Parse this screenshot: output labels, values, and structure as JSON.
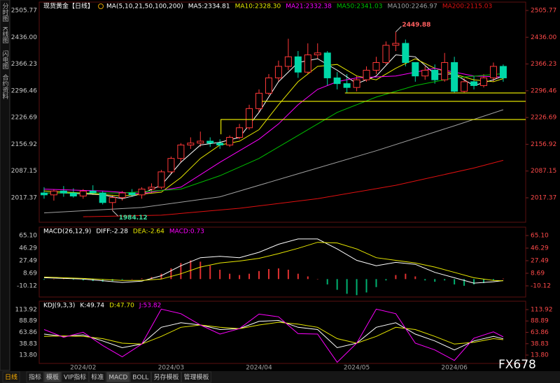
{
  "sidebar": [
    "分时图",
    "K线图",
    "闪电图",
    "合约资料"
  ],
  "toolbar": [
    "日线",
    "指标",
    "模板",
    "VIP指标",
    "标准",
    "MACD",
    "BOLL",
    "另存模板",
    "管理模板"
  ],
  "logo": "FX678",
  "chart_data": [
    {
      "type": "candlestick",
      "title": "现货黄金【日线】",
      "params": "MA(5,10,21,50,100,200)",
      "up_color": "#ff3838",
      "down_color": "#00d8a8",
      "categories": [
        null,
        null,
        null,
        null,
        "2024/02",
        null,
        null,
        null,
        null,
        null,
        null,
        null,
        null,
        "2024/03",
        null,
        null,
        null,
        null,
        null,
        null,
        null,
        null,
        "2024/04",
        null,
        null,
        null,
        null,
        null,
        null,
        null,
        null,
        null,
        "2024/05",
        null,
        null,
        null,
        null,
        null,
        null,
        null,
        null,
        null,
        "2024/06",
        null,
        null,
        null,
        null,
        null
      ],
      "xlim": [
        -0.5,
        49.3
      ],
      "ylim": [
        1953.6,
        2527.6
      ],
      "yticks": [
        2505.77,
        {
          "value": 2436,
          "label": "2436.00"
        },
        2366.23,
        2296.46,
        2226.69,
        2156.92,
        2087.15,
        2017.37
      ],
      "ohlc": [
        [
          2030,
          2045,
          2015,
          2025
        ],
        [
          2025,
          2040,
          2010,
          2035
        ],
        [
          2035,
          2048,
          2020,
          2030
        ],
        [
          2030,
          2042,
          2018,
          2022
        ],
        [
          2022,
          2040,
          2015,
          2035
        ],
        [
          2035,
          2050,
          2025,
          2030
        ],
        [
          2030,
          2035,
          2000,
          2005
        ],
        [
          2005,
          2025,
          1984.12,
          2018
        ],
        [
          2018,
          2035,
          2010,
          2030
        ],
        [
          2030,
          2040,
          2020,
          2025
        ],
        [
          2025,
          2045,
          2015,
          2040
        ],
        [
          2040,
          2055,
          2030,
          2045
        ],
        [
          2045,
          2090,
          2040,
          2085
        ],
        [
          2085,
          2125,
          2080,
          2120
        ],
        [
          2120,
          2160,
          2110,
          2155
        ],
        [
          2155,
          2175,
          2145,
          2160
        ],
        [
          2160,
          2190,
          2150,
          2165
        ],
        [
          2165,
          2175,
          2150,
          2160
        ],
        [
          2160,
          2170,
          2145,
          2155
        ],
        [
          2155,
          2180,
          2150,
          2175
        ],
        [
          2175,
          2210,
          2170,
          2200
        ],
        [
          2200,
          2260,
          2195,
          2250
        ],
        [
          2250,
          2300,
          2240,
          2290
        ],
        [
          2290,
          2340,
          2285,
          2330
        ],
        [
          2330,
          2375,
          2320,
          2360
        ],
        [
          2360,
          2432,
          2350,
          2385
        ],
        [
          2385,
          2400,
          2330,
          2345
        ],
        [
          2345,
          2420,
          2340,
          2390
        ],
        [
          2390,
          2420,
          2380,
          2395
        ],
        [
          2395,
          2400,
          2310,
          2330
        ],
        [
          2330,
          2345,
          2300,
          2315
        ],
        [
          2315,
          2340,
          2290,
          2305
        ],
        [
          2305,
          2335,
          2295,
          2325
        ],
        [
          2325,
          2360,
          2320,
          2350
        ],
        [
          2350,
          2385,
          2340,
          2370
        ],
        [
          2370,
          2425,
          2365,
          2415
        ],
        [
          2415,
          2449.88,
          2400,
          2420
        ],
        [
          2420,
          2430,
          2360,
          2370
        ],
        [
          2370,
          2370,
          2320,
          2335
        ],
        [
          2335,
          2360,
          2325,
          2350
        ],
        [
          2350,
          2365,
          2315,
          2325
        ],
        [
          2325,
          2395,
          2320,
          2370
        ],
        [
          2370,
          2385,
          2290,
          2295
        ],
        [
          2295,
          2330,
          2290,
          2320
        ],
        [
          2320,
          2335,
          2300,
          2310
        ],
        [
          2310,
          2340,
          2305,
          2330
        ],
        [
          2330,
          2370,
          2320,
          2360
        ],
        [
          2360,
          2365,
          2320,
          2330
        ]
      ],
      "series": [
        {
          "label": "MA5:2334.81",
          "color": "#ffffff",
          "x": [
            0,
            2,
            4,
            6,
            8,
            10,
            12,
            14,
            16,
            18,
            20,
            22,
            24,
            26,
            28,
            30,
            32,
            34,
            36,
            38,
            40,
            42,
            44,
            46,
            47
          ],
          "values": [
            2030,
            2030,
            2028,
            2025,
            2015,
            2028,
            2050,
            2110,
            2155,
            2162,
            2175,
            2240,
            2320,
            2370,
            2380,
            2350,
            2315,
            2335,
            2390,
            2385,
            2340,
            2340,
            2310,
            2325,
            2335
          ]
        },
        {
          "label": "MA10:2328.30",
          "color": "#e8e800",
          "x": [
            0,
            4,
            8,
            12,
            14,
            16,
            18,
            20,
            22,
            24,
            26,
            28,
            30,
            32,
            34,
            36,
            38,
            40,
            42,
            44,
            46,
            47
          ],
          "values": [
            2035,
            2030,
            2022,
            2032,
            2070,
            2120,
            2155,
            2165,
            2195,
            2260,
            2320,
            2360,
            2365,
            2335,
            2325,
            2355,
            2380,
            2355,
            2340,
            2325,
            2320,
            2328
          ]
        },
        {
          "label": "MA21:2332.38",
          "color": "#ff00ff",
          "x": [
            0,
            6,
            10,
            14,
            18,
            20,
            22,
            24,
            26,
            28,
            30,
            32,
            36,
            40,
            44,
            47
          ],
          "values": [
            2040,
            2035,
            2028,
            2045,
            2110,
            2140,
            2170,
            2210,
            2260,
            2300,
            2320,
            2330,
            2335,
            2355,
            2335,
            2332
          ]
        },
        {
          "label": "MA50:2341.03",
          "color": "#00c000",
          "x": [
            0,
            8,
            14,
            18,
            22,
            26,
            30,
            34,
            38,
            42,
            47
          ],
          "values": [
            2030,
            2030,
            2040,
            2075,
            2120,
            2180,
            2240,
            2280,
            2310,
            2330,
            2341
          ]
        },
        {
          "label": "MA100:2246.97",
          "color": "#a0a0a0",
          "x": [
            0,
            10,
            18,
            26,
            34,
            42,
            47
          ],
          "values": [
            1978,
            1992,
            2020,
            2080,
            2140,
            2205,
            2247
          ]
        },
        {
          "label": "MA200:2115.03",
          "color": "#e01010",
          "x": [
            4,
            12,
            20,
            28,
            36,
            44,
            47
          ],
          "values": [
            1968,
            1972,
            1990,
            2015,
            2050,
            2095,
            2115
          ]
        }
      ],
      "segments": [
        {
          "color": "#e0e000",
          "x": [
            30.8,
            49.3
          ],
          "y": [
            2290.7,
            2290.7
          ]
        },
        {
          "color": "#e0e000",
          "x": [
            22.3,
            49.3
          ],
          "y": [
            2268.9,
            2268.9
          ]
        },
        {
          "color": "#e0e000",
          "x": [
            18.1,
            18.1,
            49.3
          ],
          "y": [
            2183,
            2221.4,
            2221.4
          ]
        }
      ],
      "annotations": [
        {
          "x": 36,
          "y": 2449.88,
          "color": "#ff6060"
        },
        {
          "x": 7,
          "y": 1984.12,
          "color": "#40e0a0"
        }
      ]
    },
    {
      "type": "combo",
      "title": "MACD(26,12,9)",
      "ylim": [
        -26.84,
        77.63
      ],
      "yticks": [
        {
          "value": 65.1,
          "label": "65.10"
        },
        46.29,
        27.49,
        8.69,
        -10.12
      ],
      "bars": {
        "label": "MACD:0.73",
        "color": "#ff00ff",
        "up_color": "#e03030",
        "down_color": "#00b070",
        "values": [
          -1,
          0,
          1,
          -1,
          -2,
          -3,
          -4,
          -3,
          -1,
          0,
          1,
          3,
          8,
          16,
          24,
          28,
          26,
          20,
          14,
          8,
          6,
          8,
          12,
          15,
          16,
          14,
          8,
          4,
          0,
          -8,
          -16,
          -22,
          -24,
          -20,
          -12,
          -2,
          6,
          8,
          4,
          -2,
          -4,
          -2,
          -8,
          -10,
          -8,
          -6,
          -2,
          0.73
        ]
      },
      "series": [
        {
          "label": "DIFF:-2.28",
          "color": "#ffffff",
          "x": [
            0,
            4,
            8,
            10,
            12,
            14,
            16,
            18,
            20,
            22,
            24,
            26,
            28,
            30,
            32,
            34,
            36,
            38,
            40,
            42,
            44,
            46,
            47
          ],
          "values": [
            2,
            0,
            -5,
            -3,
            5,
            20,
            32,
            34,
            32,
            40,
            52,
            60,
            60,
            45,
            28,
            20,
            25,
            22,
            10,
            2,
            -6,
            -4,
            -2.28
          ]
        },
        {
          "label": "DEA:-2.64",
          "color": "#e8e800",
          "x": [
            0,
            4,
            8,
            10,
            12,
            14,
            16,
            18,
            20,
            22,
            24,
            26,
            28,
            30,
            32,
            34,
            36,
            38,
            40,
            42,
            44,
            46,
            47
          ],
          "values": [
            3,
            1,
            -2,
            -2,
            0,
            8,
            18,
            24,
            27,
            31,
            38,
            46,
            55,
            54,
            45,
            32,
            28,
            24,
            18,
            10,
            2,
            -2,
            -2.64
          ]
        }
      ]
    },
    {
      "type": "line",
      "title": "KDJ(9,3,3)",
      "ylim": [
        -4.63,
        132.35
      ],
      "yticks": [
        113.92,
        88.89,
        63.86,
        38.83,
        {
          "value": 13.8,
          "label": "13.80"
        }
      ],
      "series": [
        {
          "label": "K:49.74",
          "color": "#ffffff",
          "x": [
            0,
            2,
            4,
            6,
            8,
            10,
            12,
            14,
            16,
            18,
            20,
            22,
            24,
            26,
            28,
            30,
            32,
            34,
            36,
            38,
            40,
            42,
            44,
            46,
            47
          ],
          "values": [
            60,
            55,
            58,
            45,
            30,
            38,
            75,
            85,
            80,
            70,
            72,
            88,
            90,
            75,
            70,
            30,
            40,
            75,
            85,
            60,
            45,
            25,
            45,
            55,
            49.74
          ]
        },
        {
          "label": "D:47.70",
          "color": "#e8e800",
          "x": [
            0,
            2,
            4,
            6,
            8,
            10,
            12,
            14,
            16,
            18,
            20,
            22,
            24,
            26,
            28,
            30,
            32,
            34,
            36,
            38,
            40,
            42,
            44,
            46,
            47
          ],
          "values": [
            55,
            56,
            55,
            50,
            40,
            38,
            55,
            75,
            80,
            75,
            72,
            80,
            86,
            82,
            75,
            50,
            40,
            55,
            75,
            70,
            55,
            38,
            42,
            50,
            47.7
          ]
        },
        {
          "label": "J:53.82",
          "color": "#ff00ff",
          "x": [
            0,
            2,
            4,
            6,
            8,
            10,
            12,
            14,
            16,
            18,
            20,
            22,
            24,
            26,
            28,
            30,
            32,
            34,
            36,
            38,
            40,
            42,
            44,
            46,
            47
          ],
          "values": [
            70,
            53,
            64,
            35,
            10,
            38,
            115,
            105,
            80,
            60,
            72,
            104,
            98,
            61,
            60,
            -2,
            40,
            115,
            105,
            40,
            25,
            2,
            51,
            65,
            53.82
          ]
        }
      ]
    }
  ]
}
